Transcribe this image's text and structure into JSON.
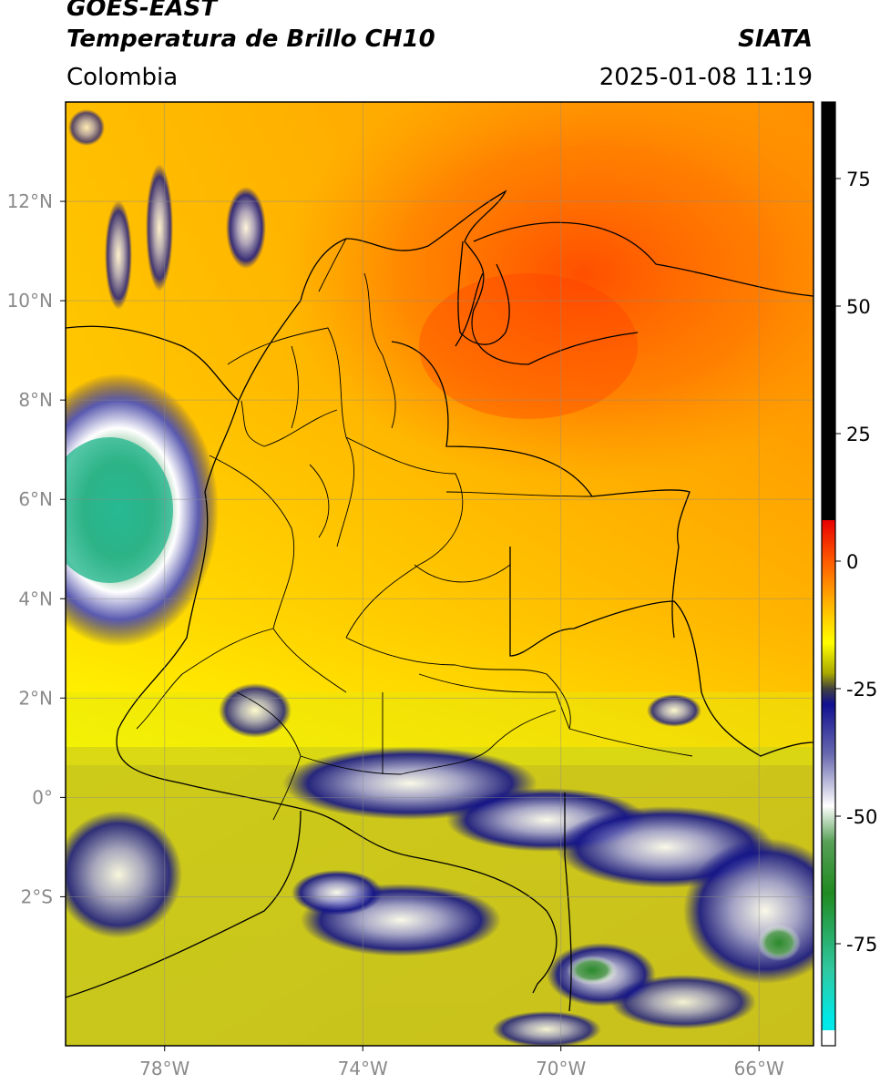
{
  "header": {
    "satellite": "GOES-EAST",
    "product": "Temperatura de Brillo CH10",
    "agency": "SIATA",
    "region": "Colombia",
    "timestamp": "2025-01-08 11:19"
  },
  "map": {
    "lon_range": [
      -80,
      -65
    ],
    "lat_range": [
      -5,
      14
    ],
    "lon_ticks": [
      {
        "value": -78,
        "label": "78°W"
      },
      {
        "value": -74,
        "label": "74°W"
      },
      {
        "value": -70,
        "label": "70°W"
      },
      {
        "value": -66,
        "label": "66°W"
      }
    ],
    "lat_ticks": [
      {
        "value": 12,
        "label": "12°N"
      },
      {
        "value": 10,
        "label": "10°N"
      },
      {
        "value": 8,
        "label": "8°N"
      },
      {
        "value": 6,
        "label": "6°N"
      },
      {
        "value": 4,
        "label": "4°N"
      },
      {
        "value": 2,
        "label": "2°N"
      },
      {
        "value": 0,
        "label": "0°"
      },
      {
        "value": -2,
        "label": "2°S"
      }
    ],
    "gridlines": true
  },
  "colorbar": {
    "range": [
      -95,
      90
    ],
    "ticks": [
      {
        "value": 75,
        "label": "75"
      },
      {
        "value": 50,
        "label": "50"
      },
      {
        "value": 25,
        "label": "25"
      },
      {
        "value": 0,
        "label": "0"
      },
      {
        "value": -25,
        "label": "-25"
      },
      {
        "value": -50,
        "label": "-50"
      },
      {
        "value": -75,
        "label": "-75"
      }
    ],
    "stops": [
      {
        "value": 90,
        "color": "#000000"
      },
      {
        "value": 8,
        "color": "#000000"
      },
      {
        "value": 8,
        "color": "#e80000"
      },
      {
        "value": 0,
        "color": "#ff5a00"
      },
      {
        "value": -8,
        "color": "#ffb000"
      },
      {
        "value": -16,
        "color": "#ffff00"
      },
      {
        "value": -22,
        "color": "#a8a800"
      },
      {
        "value": -25,
        "color": "#404040"
      },
      {
        "value": -28,
        "color": "#101090"
      },
      {
        "value": -38,
        "color": "#6a6ab0"
      },
      {
        "value": -48,
        "color": "#ffffff"
      },
      {
        "value": -55,
        "color": "#58a058"
      },
      {
        "value": -65,
        "color": "#208a20"
      },
      {
        "value": -80,
        "color": "#30c8a0"
      },
      {
        "value": -90,
        "color": "#00e8e8"
      },
      {
        "value": -92,
        "color": "#00e8e8"
      },
      {
        "value": -92,
        "color": "#ffffff"
      },
      {
        "value": -95,
        "color": "#ffffff"
      }
    ]
  }
}
